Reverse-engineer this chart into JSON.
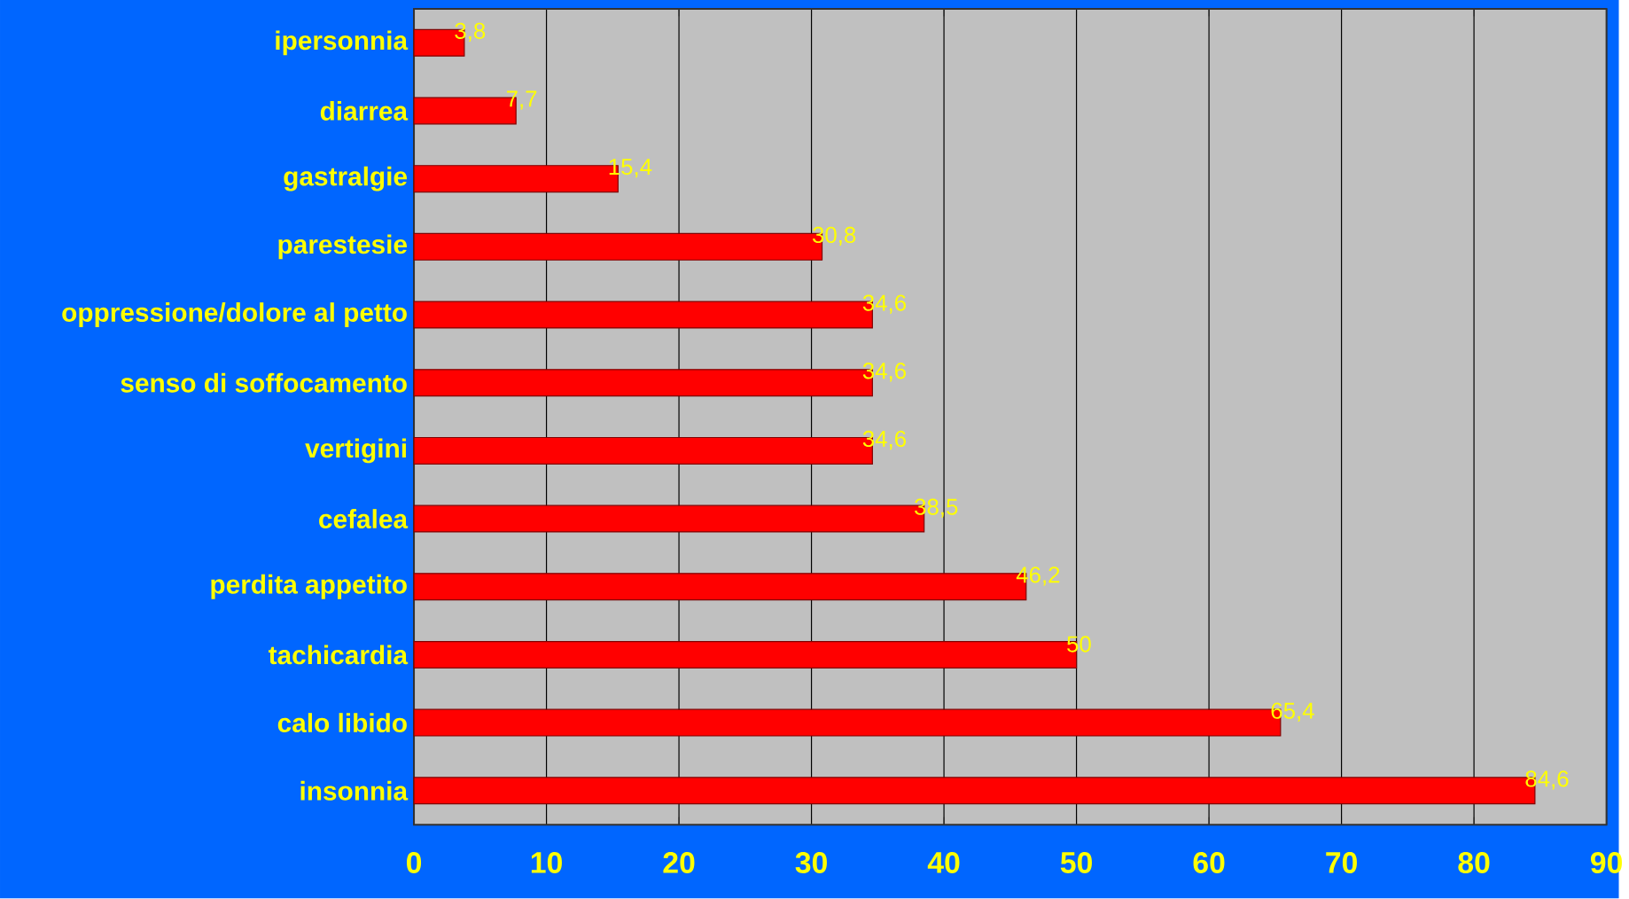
{
  "chart_data": {
    "type": "bar",
    "orientation": "horizontal",
    "categories": [
      "ipersonnia",
      "diarrea",
      "gastralgie",
      "parestesie",
      "oppressione/dolore al petto",
      "senso di soffocamento",
      "vertigini",
      "cefalea",
      "perdita appetito",
      "tachicardia",
      "calo libido",
      "insonnia"
    ],
    "values": [
      3.8,
      7.7,
      15.4,
      30.8,
      34.6,
      34.6,
      34.6,
      38.5,
      46.2,
      50,
      65.4,
      84.6
    ],
    "value_labels": [
      "3,8",
      "7,7",
      "15,4",
      "30,8",
      "34,6",
      "34,6",
      "34,6",
      "38,5",
      "46,2",
      "50",
      "65,4",
      "84,6"
    ],
    "color": "#ff0000",
    "xlim": [
      0,
      90
    ],
    "xticks": [
      0,
      10,
      20,
      30,
      40,
      50,
      60,
      70,
      80,
      90
    ],
    "grid": "x"
  }
}
